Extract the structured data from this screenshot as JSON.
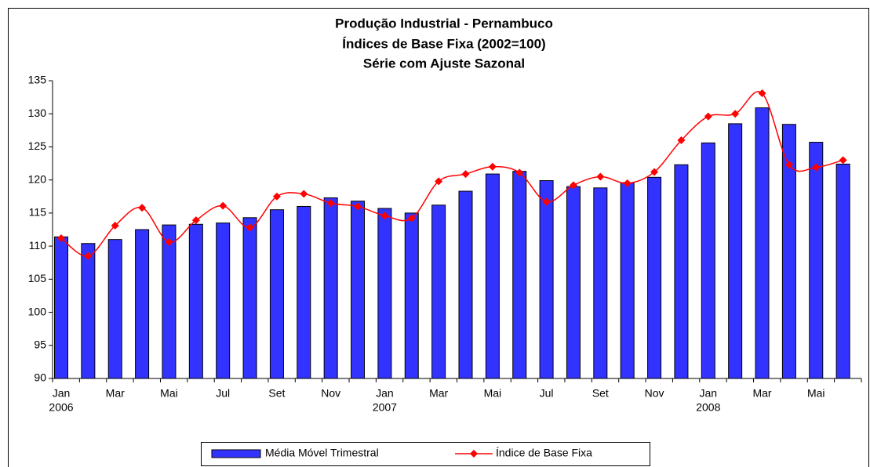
{
  "chart_data": {
    "type": "bar-line",
    "title": [
      "Produção Industrial - Pernambuco",
      "Índices de Base Fixa (2002=100)",
      "Série com Ajuste Sazonal"
    ],
    "categories": [
      "Jan",
      null,
      "Mar",
      null,
      "Mai",
      null,
      "Jul",
      null,
      "Set",
      null,
      "Nov",
      null,
      "Jan",
      null,
      "Mar",
      null,
      "Mai",
      null,
      "Jul",
      null,
      "Set",
      null,
      "Nov",
      null,
      "Jan",
      null,
      "Mar",
      null,
      "Mai",
      null
    ],
    "years": [
      "2006",
      null,
      null,
      null,
      null,
      null,
      null,
      null,
      null,
      null,
      null,
      null,
      "2007",
      null,
      null,
      null,
      null,
      null,
      null,
      null,
      null,
      null,
      null,
      null,
      "2008",
      null,
      null,
      null,
      null,
      null
    ],
    "series": [
      {
        "name": "Média Móvel Trimestral",
        "kind": "bar",
        "color": "#3333ff",
        "values": [
          111.4,
          110.4,
          111.0,
          112.5,
          113.2,
          113.3,
          113.5,
          114.3,
          115.5,
          116.0,
          117.3,
          116.8,
          115.7,
          115.0,
          116.2,
          118.3,
          120.9,
          121.3,
          119.9,
          119.0,
          118.8,
          119.6,
          120.4,
          122.3,
          125.6,
          128.5,
          130.9,
          128.4,
          125.7,
          122.4
        ]
      },
      {
        "name": "Índice de Base Fixa",
        "kind": "line",
        "color": "#ff0000",
        "values": [
          111.2,
          108.5,
          113.1,
          115.8,
          110.6,
          113.9,
          116.1,
          112.8,
          117.5,
          117.9,
          116.5,
          116.0,
          114.6,
          114.2,
          119.8,
          120.9,
          122.0,
          121.1,
          116.7,
          119.2,
          120.5,
          119.5,
          121.2,
          126.0,
          129.6,
          130.0,
          133.1,
          122.3,
          121.9,
          123.0
        ]
      }
    ],
    "ylim": [
      90,
      135
    ],
    "yticks": [
      90,
      95,
      100,
      105,
      110,
      115,
      120,
      125,
      130,
      135
    ],
    "grid": false,
    "legend": "bottom"
  }
}
